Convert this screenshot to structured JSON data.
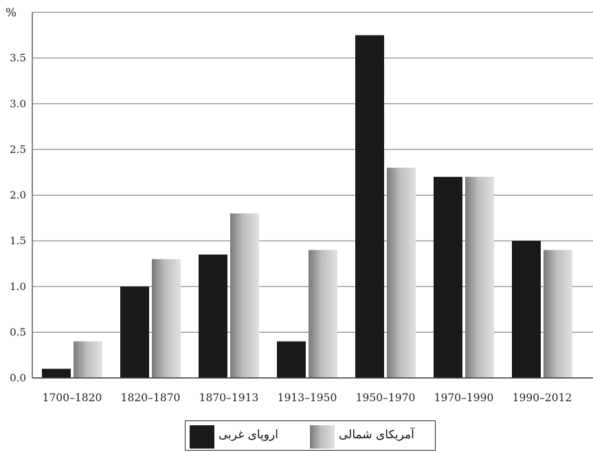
{
  "chart_data": {
    "type": "bar",
    "y_unit_label": "%",
    "categories": [
      "1700–1820",
      "1820–1870",
      "1870–1913",
      "1913–1950",
      "1950–1970",
      "1970–1990",
      "1990–2012"
    ],
    "series": [
      {
        "name": "اروپای غربی",
        "color": "#1a1a1a",
        "values": [
          0.1,
          1.0,
          1.35,
          0.4,
          3.75,
          2.2,
          1.5
        ]
      },
      {
        "name": "آمریکای شمالی",
        "color": "#b0b0b0",
        "values": [
          0.4,
          1.3,
          1.8,
          1.4,
          2.3,
          2.2,
          1.4
        ]
      }
    ],
    "y_ticks": [
      "0.0",
      "0.5",
      "1.0",
      "1.5",
      "2.0",
      "2.5",
      "3.0",
      "3.5"
    ],
    "ylim": [
      0,
      4.0
    ],
    "grid": true,
    "legend_position": "bottom-center"
  }
}
